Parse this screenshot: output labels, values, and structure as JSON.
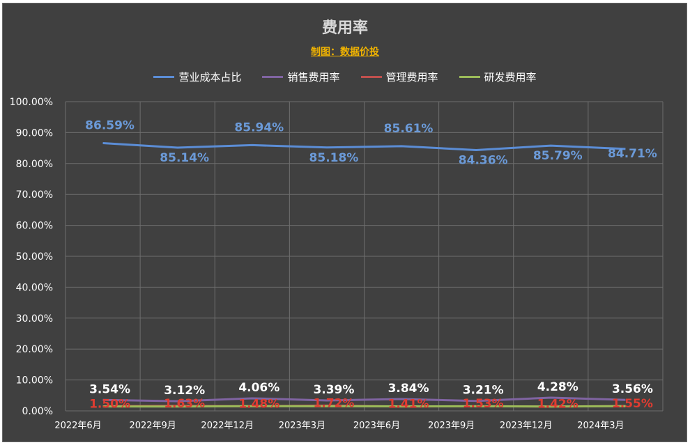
{
  "chart_data": {
    "type": "line",
    "title": "费用率",
    "subtitle": "制图：数据价投",
    "categories": [
      "2022年6月",
      "2022年9月",
      "2022年12月",
      "2023年3月",
      "2023年6月",
      "2023年9月",
      "2023年12月",
      "2024年3月"
    ],
    "ylim": [
      0,
      100
    ],
    "yticks": [
      "0.00%",
      "10.00%",
      "20.00%",
      "30.00%",
      "40.00%",
      "50.00%",
      "60.00%",
      "70.00%",
      "80.00%",
      "90.00%",
      "100.00%"
    ],
    "grid": true,
    "legend_position": "top",
    "series": [
      {
        "name": "营业成本占比",
        "color": "#5b8dd6",
        "label_color": "#6b9ad8",
        "values": [
          86.59,
          85.14,
          85.94,
          85.18,
          85.61,
          84.36,
          85.79,
          84.71
        ],
        "labels": [
          "86.59%",
          "85.14%",
          "85.94%",
          "85.18%",
          "85.61%",
          "84.36%",
          "85.79%",
          "84.71%"
        ]
      },
      {
        "name": "销售费用率",
        "color": "#8064a2",
        "label_color": "#ffffff",
        "values": [
          3.54,
          3.12,
          4.06,
          3.39,
          3.84,
          3.21,
          4.28,
          3.56
        ],
        "labels": [
          "3.54%",
          "3.12%",
          "4.06%",
          "3.39%",
          "3.84%",
          "3.21%",
          "4.28%",
          "3.56%"
        ]
      },
      {
        "name": "管理费用率",
        "color": "#c0504d",
        "label_color": "#e03c31",
        "values": [
          1.5,
          1.63,
          1.48,
          1.72,
          1.41,
          1.53,
          1.42,
          1.55
        ],
        "labels": [
          "1.50%",
          "1.63%",
          "1.48%",
          "1.72%",
          "1.41%",
          "1.53%",
          "1.42%",
          "1.55%"
        ]
      },
      {
        "name": "研发费用率",
        "color": "#9bbb59",
        "label_color": "#9bbb59",
        "values": [
          1.43,
          1.4,
          1.51,
          1.5,
          1.46,
          1.49,
          1.41,
          1.52
        ],
        "labels": []
      }
    ]
  }
}
